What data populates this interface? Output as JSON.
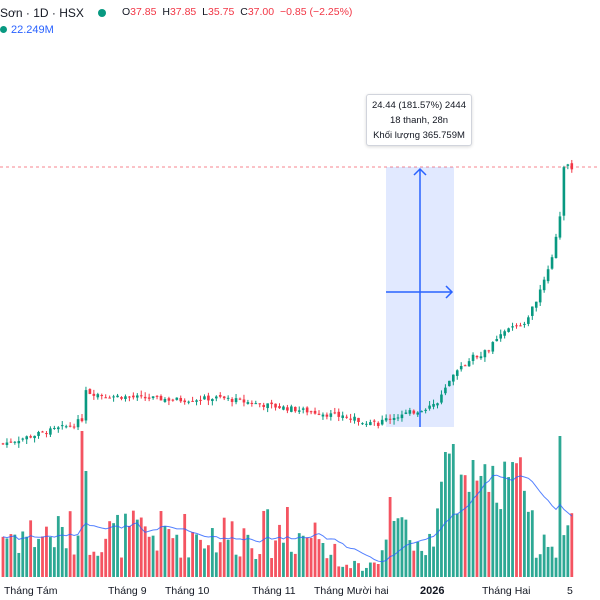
{
  "header": {
    "symbol": "Sơn · 1D · HSX",
    "ohlc": [
      {
        "key": "O",
        "value": "37.85"
      },
      {
        "key": "H",
        "value": "37.85"
      },
      {
        "key": "L",
        "value": "35.75"
      },
      {
        "key": "C",
        "value": "37.00"
      }
    ],
    "change": "−0.85 (−2.25%)",
    "volume_ma": "22.249M"
  },
  "measure_tooltip": {
    "line1": "24.44 (181.57%) 2444",
    "line2": "18 thanh, 28n",
    "line3": "Khối lượng 365.759M"
  },
  "colors": {
    "up": "#089981",
    "down": "#f23645",
    "volume_ma": "#2962ff",
    "measure_fill": "#2962ff",
    "price_line": "#f23645"
  },
  "chart_data": {
    "type": "candlestick",
    "x_tick_labels": [
      "Tháng Tám",
      "Tháng 9",
      "Tháng 10",
      "Tháng 11",
      "Tháng Mười hai",
      "2026",
      "Tháng Hai",
      "5"
    ],
    "last_close": 37.0,
    "measured_range": {
      "change": 24.44,
      "percent": 181.57,
      "bars": 18,
      "days": 28,
      "volume": "365.759M"
    },
    "grid": false,
    "volume_pane": true,
    "volume_ma_value": "22.249M"
  }
}
